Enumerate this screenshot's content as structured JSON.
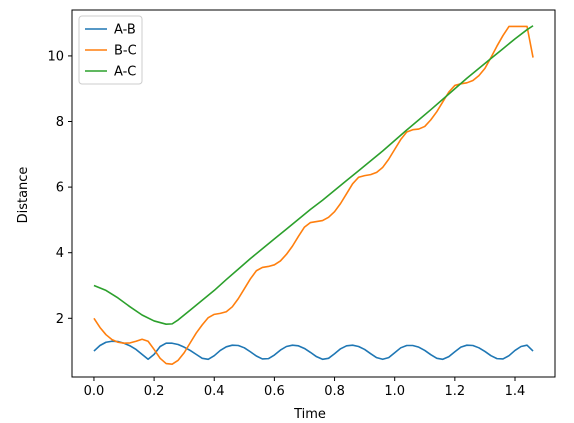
{
  "chart_data": {
    "type": "line",
    "title": "",
    "xlabel": "Time",
    "ylabel": "Distance",
    "xlim": [
      -0.073,
      1.533
    ],
    "ylim": [
      0.21,
      11.4
    ],
    "x_ticks": [
      "0.0",
      "0.2",
      "0.4",
      "0.6",
      "0.8",
      "1.0",
      "1.2",
      "1.4"
    ],
    "x_tick_values": [
      0.0,
      0.2,
      0.4,
      0.6,
      0.8,
      1.0,
      1.2,
      1.4
    ],
    "y_ticks": [
      "2",
      "4",
      "6",
      "8",
      "10"
    ],
    "y_tick_values": [
      2,
      4,
      6,
      8,
      10
    ],
    "grid": false,
    "legend_position": "top-left",
    "series": [
      {
        "name": "A-B",
        "color": "#1f77b4",
        "x": [
          0.0,
          0.02,
          0.04,
          0.06,
          0.08,
          0.1,
          0.12,
          0.14,
          0.16,
          0.18,
          0.2,
          0.22,
          0.24,
          0.26,
          0.28,
          0.3,
          0.32,
          0.34,
          0.36,
          0.38,
          0.4,
          0.42,
          0.44,
          0.46,
          0.48,
          0.5,
          0.52,
          0.54,
          0.56,
          0.58,
          0.6,
          0.62,
          0.64,
          0.66,
          0.68,
          0.7,
          0.72,
          0.74,
          0.76,
          0.78,
          0.8,
          0.82,
          0.84,
          0.86,
          0.88,
          0.9,
          0.92,
          0.94,
          0.96,
          0.98,
          1.0,
          1.02,
          1.04,
          1.06,
          1.08,
          1.1,
          1.12,
          1.14,
          1.16,
          1.18,
          1.2,
          1.22,
          1.24,
          1.26,
          1.28,
          1.3,
          1.32,
          1.34,
          1.36,
          1.38,
          1.4,
          1.42,
          1.44,
          1.46
        ],
        "y": [
          1.0,
          1.17,
          1.27,
          1.3,
          1.29,
          1.24,
          1.16,
          1.05,
          0.9,
          0.75,
          0.9,
          1.14,
          1.24,
          1.24,
          1.2,
          1.12,
          1.02,
          0.9,
          0.78,
          0.75,
          0.86,
          1.02,
          1.13,
          1.18,
          1.17,
          1.1,
          0.98,
          0.85,
          0.76,
          0.77,
          0.88,
          1.03,
          1.14,
          1.18,
          1.16,
          1.08,
          0.96,
          0.83,
          0.75,
          0.78,
          0.92,
          1.07,
          1.16,
          1.18,
          1.14,
          1.05,
          0.92,
          0.8,
          0.75,
          0.8,
          0.95,
          1.1,
          1.17,
          1.17,
          1.12,
          1.02,
          0.89,
          0.78,
          0.75,
          0.83,
          0.98,
          1.12,
          1.18,
          1.17,
          1.1,
          0.99,
          0.86,
          0.77,
          0.76,
          0.86,
          1.02,
          1.14,
          1.18,
          1.0
        ]
      },
      {
        "name": "B-C",
        "color": "#ff7f0e",
        "x": [
          0.0,
          0.02,
          0.04,
          0.06,
          0.08,
          0.1,
          0.12,
          0.14,
          0.16,
          0.18,
          0.2,
          0.22,
          0.24,
          0.26,
          0.28,
          0.3,
          0.32,
          0.34,
          0.36,
          0.38,
          0.4,
          0.42,
          0.44,
          0.46,
          0.48,
          0.5,
          0.52,
          0.54,
          0.56,
          0.58,
          0.6,
          0.62,
          0.64,
          0.66,
          0.68,
          0.7,
          0.72,
          0.74,
          0.76,
          0.78,
          0.8,
          0.82,
          0.84,
          0.86,
          0.88,
          0.9,
          0.92,
          0.94,
          0.96,
          0.98,
          1.0,
          1.02,
          1.04,
          1.06,
          1.08,
          1.1,
          1.12,
          1.14,
          1.16,
          1.18,
          1.2,
          1.22,
          1.24,
          1.26,
          1.28,
          1.3,
          1.32,
          1.34,
          1.36,
          1.38,
          1.4,
          1.42,
          1.44,
          1.46
        ],
        "y": [
          2.0,
          1.72,
          1.5,
          1.35,
          1.27,
          1.24,
          1.25,
          1.3,
          1.36,
          1.3,
          1.05,
          0.78,
          0.62,
          0.6,
          0.72,
          0.95,
          1.25,
          1.55,
          1.8,
          2.02,
          2.12,
          2.15,
          2.2,
          2.35,
          2.6,
          2.9,
          3.2,
          3.45,
          3.55,
          3.58,
          3.63,
          3.75,
          3.95,
          4.2,
          4.5,
          4.78,
          4.92,
          4.95,
          4.98,
          5.08,
          5.25,
          5.5,
          5.8,
          6.1,
          6.3,
          6.35,
          6.38,
          6.45,
          6.6,
          6.85,
          7.15,
          7.45,
          7.68,
          7.75,
          7.77,
          7.85,
          8.05,
          8.3,
          8.6,
          8.9,
          9.1,
          9.15,
          9.18,
          9.25,
          9.4,
          9.62,
          9.95,
          10.3,
          10.62,
          10.9,
          10.9,
          10.9,
          10.9,
          9.95
        ]
      },
      {
        "name": "A-C",
        "color": "#2ca02c",
        "x": [
          0.0,
          0.04,
          0.08,
          0.12,
          0.16,
          0.2,
          0.24,
          0.26,
          0.28,
          0.32,
          0.36,
          0.4,
          0.44,
          0.48,
          0.52,
          0.56,
          0.6,
          0.64,
          0.68,
          0.72,
          0.76,
          0.8,
          0.84,
          0.88,
          0.92,
          0.96,
          1.0,
          1.04,
          1.08,
          1.12,
          1.16,
          1.2,
          1.24,
          1.28,
          1.32,
          1.36,
          1.4,
          1.44,
          1.46
        ],
        "y": [
          3.0,
          2.85,
          2.62,
          2.35,
          2.1,
          1.92,
          1.82,
          1.83,
          1.95,
          2.25,
          2.55,
          2.85,
          3.18,
          3.5,
          3.82,
          4.12,
          4.42,
          4.72,
          5.02,
          5.32,
          5.6,
          5.9,
          6.2,
          6.5,
          6.8,
          7.1,
          7.42,
          7.74,
          8.05,
          8.36,
          8.68,
          9.0,
          9.32,
          9.62,
          9.92,
          10.22,
          10.52,
          10.8,
          10.92
        ]
      }
    ]
  }
}
